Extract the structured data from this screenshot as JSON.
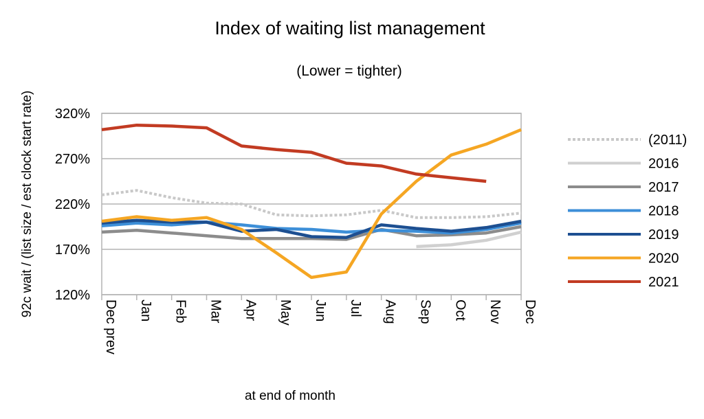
{
  "chart_data": {
    "type": "line",
    "title": "Index of waiting list management",
    "subtitle": "(Lower = tighter)",
    "xlabel": "at end of month",
    "ylabel": "92c wait / (list size / est clock start rate)",
    "categories": [
      "Dec prev",
      "Jan",
      "Feb",
      "Mar",
      "Apr",
      "May",
      "Jun",
      "Jul",
      "Aug",
      "Sep",
      "Oct",
      "Nov",
      "Dec"
    ],
    "yticks": [
      "120%",
      "170%",
      "220%",
      "270%",
      "320%"
    ],
    "ylim": [
      120,
      320
    ],
    "grid": true,
    "legend_position": "right",
    "series": [
      {
        "name": "(2011)",
        "color": "#c8c8c8",
        "style": "dotted",
        "values": [
          230,
          235,
          227,
          221,
          220,
          208,
          207,
          208,
          213,
          205,
          205,
          206,
          210
        ]
      },
      {
        "name": "2016",
        "color": "#d0d0d0",
        "style": "solid",
        "values": [
          null,
          null,
          null,
          null,
          null,
          null,
          null,
          null,
          null,
          173,
          175,
          180,
          189
        ]
      },
      {
        "name": "2017",
        "color": "#8c8c8c",
        "style": "solid",
        "values": [
          189,
          191,
          188,
          185,
          182,
          182,
          182,
          181,
          192,
          185,
          186,
          188,
          195
        ]
      },
      {
        "name": "2018",
        "color": "#3d8fd8",
        "style": "solid",
        "values": [
          196,
          199,
          197,
          200,
          197,
          193,
          192,
          189,
          191,
          190,
          188,
          192,
          199
        ]
      },
      {
        "name": "2019",
        "color": "#1d4f91",
        "style": "solid",
        "values": [
          199,
          202,
          200,
          200,
          190,
          192,
          184,
          183,
          197,
          193,
          190,
          194,
          201
        ]
      },
      {
        "name": "2020",
        "color": "#f5a623",
        "style": "solid",
        "values": [
          201,
          206,
          202,
          205,
          192,
          166,
          139,
          145,
          209,
          245,
          274,
          286,
          302
        ]
      },
      {
        "name": "2021",
        "color": "#c23b22",
        "style": "solid",
        "values": [
          302,
          307,
          306,
          304,
          284,
          280,
          277,
          265,
          262,
          253,
          249,
          245,
          null
        ]
      }
    ]
  }
}
